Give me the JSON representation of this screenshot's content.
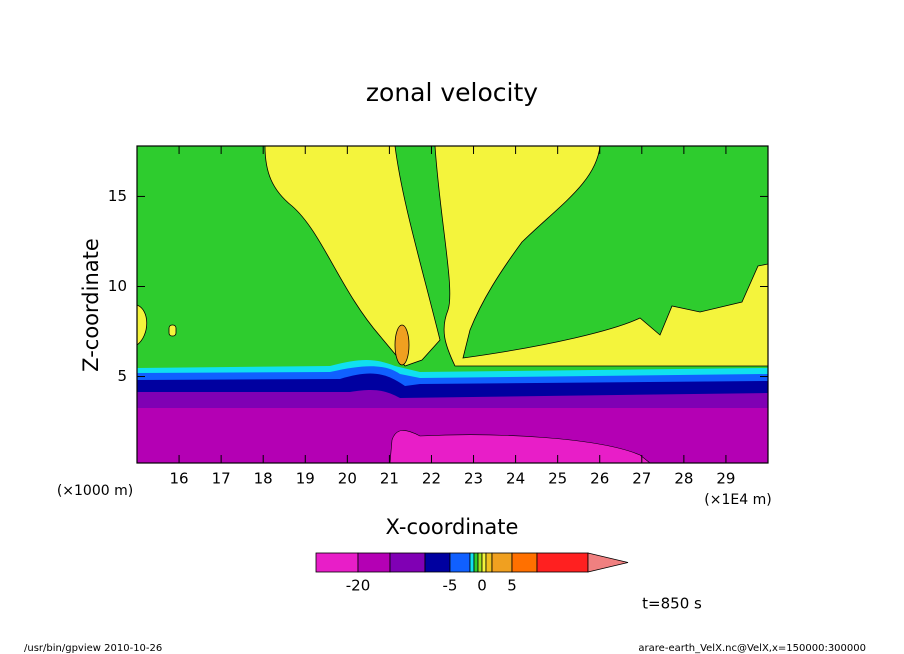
{
  "chart_data": {
    "type": "contour",
    "title": "zonal velocity",
    "x_label": "X-coordinate",
    "y_label": "Z-coordinate",
    "x_unit": "(×1E4 m)",
    "y_unit": "(×1000 m)",
    "xlim": [
      15,
      30
    ],
    "ylim": [
      0.2,
      17.8
    ],
    "xticks": [
      16,
      17,
      18,
      19,
      20,
      21,
      22,
      23,
      24,
      25,
      26,
      27,
      28,
      29
    ],
    "yticks": [
      5,
      10,
      15
    ],
    "colorbar_ticks": [
      -20,
      -5,
      0,
      5
    ],
    "time_label": "t=850 s",
    "footer_left": "/usr/bin/gpview   2010-10-26",
    "footer_right": "arare-earth_VelX.nc@VelX,x=150000:300000"
  }
}
